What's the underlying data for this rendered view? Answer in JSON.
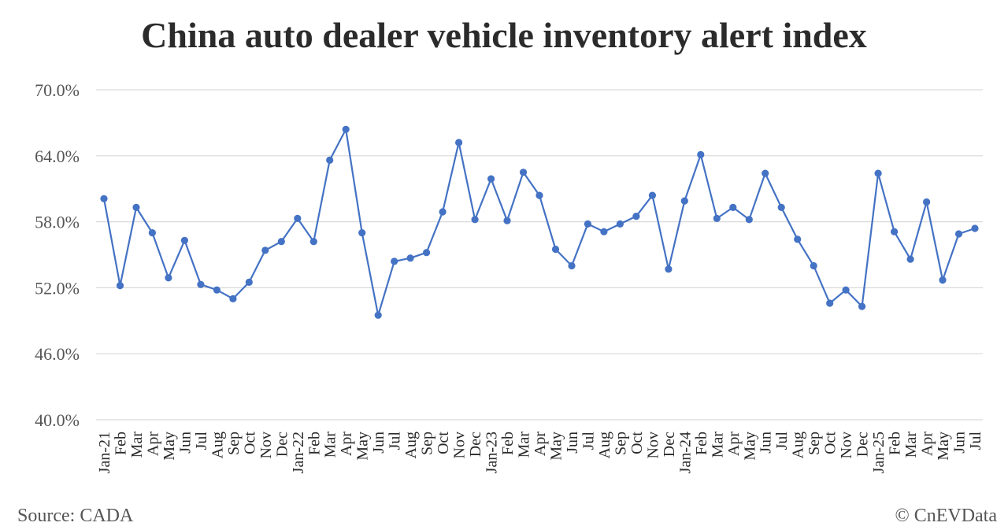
{
  "source": "Source: CADA",
  "copyright": "© CnEVData",
  "chart_data": {
    "type": "line",
    "title": "China auto dealer vehicle inventory alert index",
    "xlabel": "",
    "ylabel": "",
    "ylim": [
      40,
      70
    ],
    "yticks": [
      "40.0%",
      "46.0%",
      "52.0%",
      "58.0%",
      "64.0%",
      "70.0%"
    ],
    "ytick_values": [
      40,
      46,
      52,
      58,
      64,
      70
    ],
    "grid": true,
    "legend": "none",
    "color": "#4472c4",
    "categories": [
      "Jan-21",
      "Feb",
      "Mar",
      "Apr",
      "May",
      "Jun",
      "Jul",
      "Aug",
      "Sep",
      "Oct",
      "Nov",
      "Dec",
      "Jan-22",
      "Feb",
      "Mar",
      "Apr",
      "May",
      "Jun",
      "Jul",
      "Aug",
      "Sep",
      "Oct",
      "Nov",
      "Dec",
      "Jan-23",
      "Feb",
      "Mar",
      "Apr",
      "May",
      "Jun",
      "Jul",
      "Aug",
      "Sep",
      "Oct",
      "Nov",
      "Dec",
      "Jan-24",
      "Feb",
      "Mar",
      "Apr",
      "May",
      "Jun",
      "Jul",
      "Aug",
      "Sep",
      "Oct",
      "Nov",
      "Dec",
      "Jan-25",
      "Feb",
      "Mar",
      "Apr",
      "May",
      "Jun",
      "Jul"
    ],
    "series": [
      {
        "values": [
          60.1,
          52.2,
          59.3,
          57.0,
          52.9,
          56.3,
          52.3,
          51.8,
          51.0,
          52.5,
          55.4,
          56.2,
          58.3,
          56.2,
          63.6,
          66.4,
          57.0,
          49.5,
          54.4,
          54.7,
          55.2,
          58.9,
          65.2,
          58.2,
          61.9,
          58.1,
          62.5,
          60.4,
          55.5,
          54.0,
          57.8,
          57.1,
          57.8,
          58.5,
          60.4,
          53.7,
          59.9,
          64.1,
          58.3,
          59.3,
          58.2,
          62.4,
          59.3,
          56.4,
          54.0,
          50.6,
          51.8,
          50.3,
          62.4,
          57.1,
          54.6,
          59.8,
          52.7,
          56.9,
          57.4
        ]
      }
    ]
  }
}
